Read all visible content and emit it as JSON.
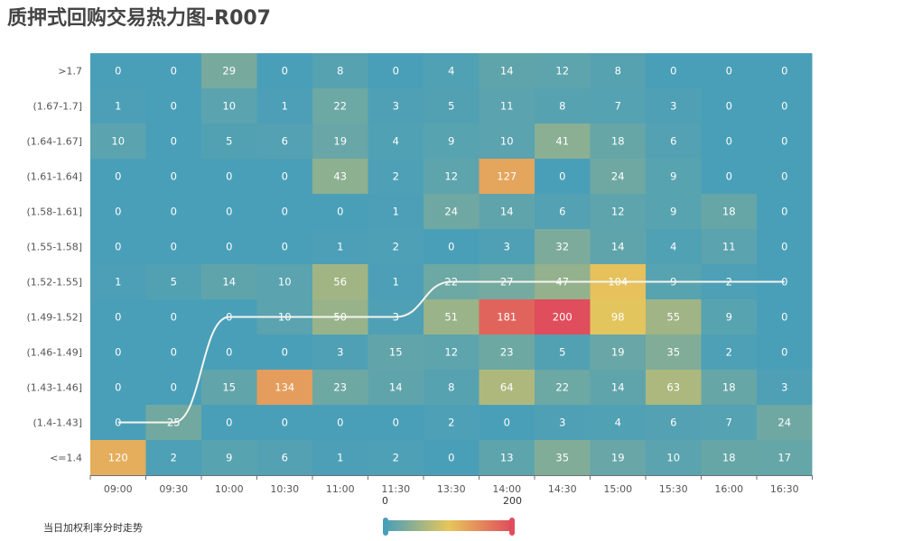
{
  "title": "质押式回购交易热力图-R007",
  "legend": {
    "series_name": "当日加权利率分时走势"
  },
  "visual_map": {
    "min": "0",
    "max": "200",
    "colors": [
      "#4a9fb8",
      "#e6c65c",
      "#e04d5c"
    ]
  },
  "chart_data": {
    "type": "heatmap",
    "title": "质押式回购交易热力图-R007",
    "x_categories": [
      "09:00",
      "09:30",
      "10:00",
      "10:30",
      "11:00",
      "11:30",
      "13:30",
      "14:00",
      "14:30",
      "15:00",
      "15:30",
      "16:00",
      "16:30"
    ],
    "y_categories": [
      ">1.7",
      "(1.67-1.7]",
      "(1.64-1.67]",
      "(1.61-1.64]",
      "(1.58-1.61]",
      "(1.55-1.58]",
      "(1.52-1.55]",
      "(1.49-1.52]",
      "(1.46-1.49]",
      "(1.43-1.46]",
      "(1.4-1.43]",
      "<=1.4"
    ],
    "values": [
      [
        0,
        0,
        29,
        0,
        8,
        0,
        4,
        14,
        12,
        8,
        0,
        0,
        0
      ],
      [
        1,
        0,
        10,
        1,
        22,
        3,
        5,
        11,
        8,
        7,
        3,
        0,
        0
      ],
      [
        10,
        0,
        5,
        6,
        19,
        4,
        9,
        10,
        41,
        18,
        6,
        0,
        0
      ],
      [
        0,
        0,
        0,
        0,
        43,
        2,
        12,
        127,
        0,
        24,
        9,
        0,
        0
      ],
      [
        0,
        0,
        0,
        0,
        0,
        1,
        24,
        14,
        6,
        12,
        9,
        18,
        0
      ],
      [
        0,
        0,
        0,
        0,
        1,
        2,
        0,
        3,
        32,
        14,
        4,
        11,
        0
      ],
      [
        1,
        5,
        14,
        10,
        56,
        1,
        22,
        27,
        47,
        104,
        9,
        2,
        0
      ],
      [
        0,
        0,
        0,
        10,
        50,
        3,
        51,
        181,
        200,
        98,
        55,
        9,
        0
      ],
      [
        0,
        0,
        0,
        0,
        3,
        15,
        12,
        23,
        5,
        19,
        35,
        2,
        0
      ],
      [
        0,
        0,
        15,
        134,
        23,
        14,
        8,
        64,
        22,
        14,
        63,
        18,
        3
      ],
      [
        0,
        25,
        0,
        0,
        0,
        0,
        2,
        0,
        3,
        4,
        6,
        7,
        24
      ],
      [
        120,
        2,
        9,
        6,
        1,
        2,
        0,
        13,
        35,
        19,
        10,
        18,
        17
      ]
    ],
    "value_range": [
      0,
      200
    ],
    "line_series": {
      "name": "当日加权利率分时走势",
      "color": "#f5f5f0",
      "y_categories_by_x": [
        "(1.4-1.43]",
        "(1.4-1.43]",
        "(1.49-1.52]",
        "(1.49-1.52]",
        "(1.49-1.52]",
        "(1.49-1.52]",
        "(1.52-1.55]",
        "(1.52-1.55]",
        "(1.52-1.55]",
        "(1.52-1.55]",
        "(1.52-1.55]",
        "(1.52-1.55]",
        "(1.52-1.55]"
      ]
    }
  }
}
